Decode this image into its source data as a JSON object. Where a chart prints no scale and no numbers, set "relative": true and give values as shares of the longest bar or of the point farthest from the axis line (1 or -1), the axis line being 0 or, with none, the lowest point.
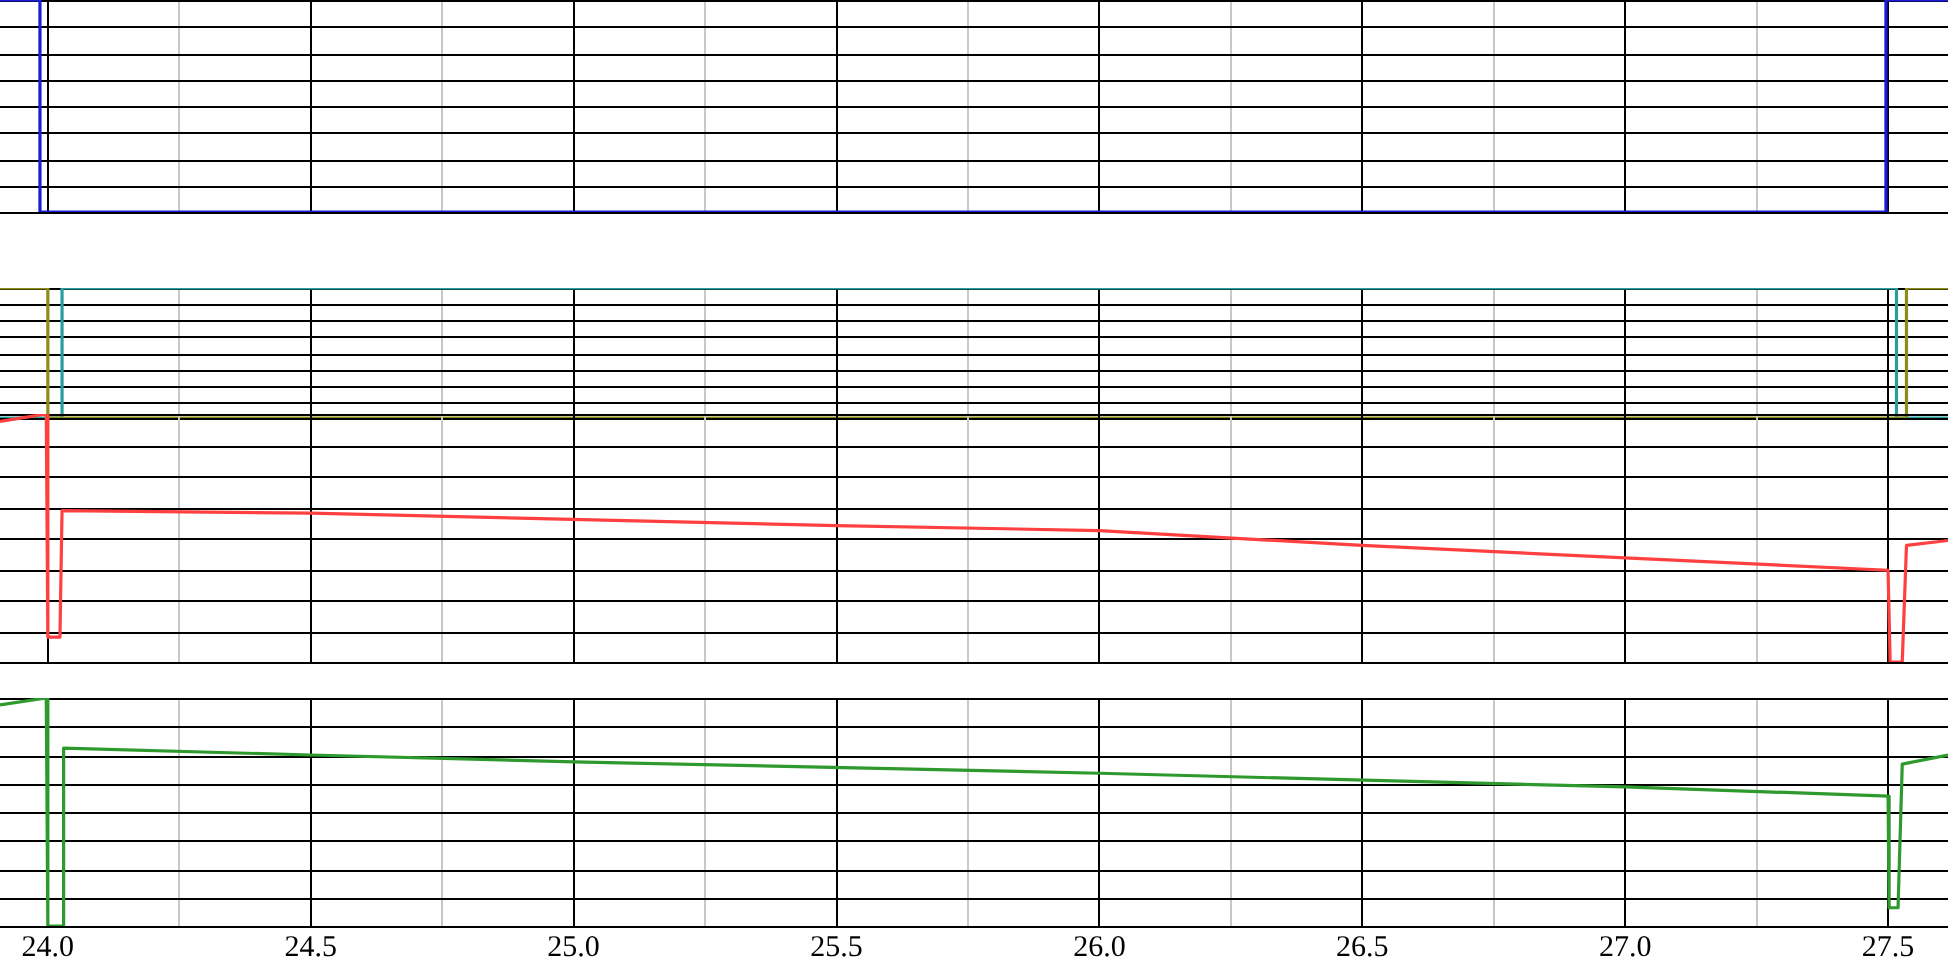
{
  "chart_data": [
    {
      "type": "line",
      "relative": true,
      "grid": "x",
      "tick_labels": false,
      "xlim": [
        23.909,
        27.614
      ],
      "xticks": [
        {
          "value": 24,
          "label": null
        },
        {
          "value": 24.25,
          "label": null
        },
        {
          "value": 24.5,
          "label": null
        },
        {
          "value": 24.75,
          "label": null
        },
        {
          "value": 25,
          "label": null
        },
        {
          "value": 25.25,
          "label": null
        },
        {
          "value": 25.5,
          "label": null
        },
        {
          "value": 25.75,
          "label": null
        },
        {
          "value": 26,
          "label": null
        },
        {
          "value": 26.25,
          "label": null
        },
        {
          "value": 26.5,
          "label": null
        },
        {
          "value": 26.75,
          "label": null
        },
        {
          "value": 27,
          "label": null
        },
        {
          "value": 27.25,
          "label": null
        },
        {
          "value": 27.5,
          "label": null
        }
      ],
      "series": [
        {
          "color": "#1c1cd6",
          "x": [
            23.909,
            23.985,
            23.985,
            27.496,
            27.496,
            27.614
          ],
          "values": [
            1,
            1,
            0,
            0,
            1,
            1
          ]
        }
      ]
    },
    {
      "type": "line",
      "relative": true,
      "grid": "x",
      "tick_labels": false,
      "xlim": [
        23.909,
        27.614
      ],
      "xticks": [
        {
          "value": 24,
          "label": null
        },
        {
          "value": 24.25,
          "label": null
        },
        {
          "value": 24.5,
          "label": null
        },
        {
          "value": 24.75,
          "label": null
        },
        {
          "value": 25,
          "label": null
        },
        {
          "value": 25.25,
          "label": null
        },
        {
          "value": 25.5,
          "label": null
        },
        {
          "value": 25.75,
          "label": null
        },
        {
          "value": 26,
          "label": null
        },
        {
          "value": 26.25,
          "label": null
        },
        {
          "value": 26.5,
          "label": null
        },
        {
          "value": 26.75,
          "label": null
        },
        {
          "value": 27,
          "label": null
        },
        {
          "value": 27.25,
          "label": null
        },
        {
          "value": 27.5,
          "label": null
        }
      ],
      "series": [
        {
          "color": "#8c8c1a",
          "x": [
            23.909,
            24.0,
            24.0,
            27.535,
            27.535,
            27.614
          ],
          "values": [
            1,
            1,
            0,
            0,
            1,
            1
          ]
        },
        {
          "color": "#2a9d9d",
          "x": [
            23.909,
            24.027,
            24.027,
            27.516,
            27.516,
            27.614
          ],
          "values": [
            0,
            0,
            1,
            1,
            0,
            0
          ]
        }
      ]
    },
    {
      "type": "line",
      "relative": true,
      "grid": "x",
      "tick_labels": false,
      "xlim": [
        23.909,
        27.614
      ],
      "xticks": [
        {
          "value": 24,
          "label": null
        },
        {
          "value": 24.25,
          "label": null
        },
        {
          "value": 24.5,
          "label": null
        },
        {
          "value": 24.75,
          "label": null
        },
        {
          "value": 25,
          "label": null
        },
        {
          "value": 25.25,
          "label": null
        },
        {
          "value": 25.5,
          "label": null
        },
        {
          "value": 25.75,
          "label": null
        },
        {
          "value": 26,
          "label": null
        },
        {
          "value": 26.25,
          "label": null
        },
        {
          "value": 26.5,
          "label": null
        },
        {
          "value": 26.75,
          "label": null
        },
        {
          "value": 27,
          "label": null
        },
        {
          "value": 27.25,
          "label": null
        },
        {
          "value": 27.5,
          "label": null
        }
      ],
      "series": [
        {
          "color": "#ff4040",
          "x": [
            23.909,
            23.997,
            24.0,
            24.023,
            24.027,
            24.5,
            25.5,
            26.0,
            26.5,
            27.0,
            27.5,
            27.504,
            27.527,
            27.535,
            27.614
          ],
          "values": [
            0.97,
            1,
            0.1,
            0.1,
            0.61,
            0.6,
            0.55,
            0.53,
            0.47,
            0.42,
            0.37,
            0,
            0,
            0.47,
            0.49
          ]
        }
      ]
    },
    {
      "type": "line",
      "relative": true,
      "grid": "x",
      "tick_labels": "x",
      "xlim": [
        23.909,
        27.614
      ],
      "xticks": [
        {
          "value": 24,
          "label": "24.0"
        },
        {
          "value": 24.25,
          "label": null
        },
        {
          "value": 24.5,
          "label": "24.5"
        },
        {
          "value": 24.75,
          "label": null
        },
        {
          "value": 25,
          "label": "25.0"
        },
        {
          "value": 25.25,
          "label": null
        },
        {
          "value": 25.5,
          "label": "25.5"
        },
        {
          "value": 25.75,
          "label": null
        },
        {
          "value": 26,
          "label": "26.0"
        },
        {
          "value": 26.25,
          "label": null
        },
        {
          "value": 26.5,
          "label": "26.5"
        },
        {
          "value": 26.75,
          "label": null
        },
        {
          "value": 27,
          "label": "27.0"
        },
        {
          "value": 27.25,
          "label": null
        },
        {
          "value": 27.5,
          "label": "27.5"
        }
      ],
      "series": [
        {
          "color": "#2e9a2e",
          "x": [
            23.909,
            23.997,
            24.0,
            24.027,
            24.03,
            24.5,
            25.0,
            26.0,
            27.0,
            27.5,
            27.502,
            27.519,
            27.527,
            27.614
          ],
          "values": [
            0.97,
            1,
            0,
            0,
            0.78,
            0.75,
            0.72,
            0.67,
            0.61,
            0.57,
            0.08,
            0.08,
            0.71,
            0.75
          ]
        }
      ]
    }
  ]
}
